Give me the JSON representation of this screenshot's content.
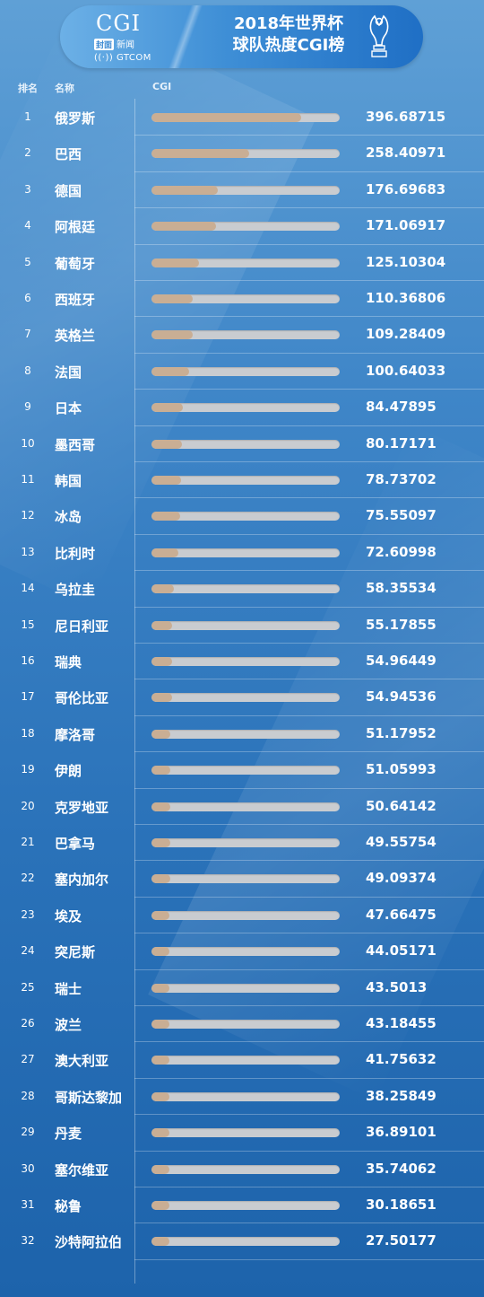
{
  "header": {
    "logo_text": "CGI",
    "logo_sub_box": "封面",
    "logo_sub_text": "新闻",
    "logo_gt": "GTCOM",
    "title_line1": "2018年世界杯",
    "title_line2": "球队热度CGI榜"
  },
  "colors": {
    "bar_fill": "#c9ae94",
    "bar_track": "#c9ccd0",
    "background_top": "#5fa0d6",
    "background_bottom": "#1d63ab"
  },
  "chart_data": {
    "type": "bar",
    "orientation": "horizontal",
    "columns": {
      "rank": "排名",
      "name": "名称",
      "value": "CGI"
    },
    "xlim": [
      0,
      500
    ],
    "rows": [
      {
        "rank": "1",
        "name": "俄罗斯",
        "value": "396.68715"
      },
      {
        "rank": "2",
        "name": "巴西",
        "value": "258.40971"
      },
      {
        "rank": "3",
        "name": "德国",
        "value": "176.69683"
      },
      {
        "rank": "4",
        "name": "阿根廷",
        "value": "171.06917"
      },
      {
        "rank": "5",
        "name": "葡萄牙",
        "value": "125.10304"
      },
      {
        "rank": "6",
        "name": "西班牙",
        "value": "110.36806"
      },
      {
        "rank": "7",
        "name": "英格兰",
        "value": "109.28409"
      },
      {
        "rank": "8",
        "name": "法国",
        "value": "100.64033"
      },
      {
        "rank": "9",
        "name": "日本",
        "value": "84.47895"
      },
      {
        "rank": "10",
        "name": "墨西哥",
        "value": "80.17171"
      },
      {
        "rank": "11",
        "name": "韩国",
        "value": "78.73702"
      },
      {
        "rank": "12",
        "name": "冰岛",
        "value": "75.55097"
      },
      {
        "rank": "13",
        "name": "比利时",
        "value": "72.60998"
      },
      {
        "rank": "14",
        "name": "乌拉圭",
        "value": "58.35534"
      },
      {
        "rank": "15",
        "name": "尼日利亚",
        "value": "55.17855"
      },
      {
        "rank": "16",
        "name": "瑞典",
        "value": "54.96449"
      },
      {
        "rank": "17",
        "name": "哥伦比亚",
        "value": "54.94536"
      },
      {
        "rank": "18",
        "name": "摩洛哥",
        "value": "51.17952"
      },
      {
        "rank": "19",
        "name": "伊朗",
        "value": "51.05993"
      },
      {
        "rank": "20",
        "name": "克罗地亚",
        "value": "50.64142"
      },
      {
        "rank": "21",
        "name": "巴拿马",
        "value": "49.55754"
      },
      {
        "rank": "22",
        "name": "塞内加尔",
        "value": "49.09374"
      },
      {
        "rank": "23",
        "name": "埃及",
        "value": "47.66475"
      },
      {
        "rank": "24",
        "name": "突尼斯",
        "value": "44.05171"
      },
      {
        "rank": "25",
        "name": "瑞士",
        "value": "43.5013"
      },
      {
        "rank": "26",
        "name": "波兰",
        "value": "43.18455"
      },
      {
        "rank": "27",
        "name": "澳大利亚",
        "value": "41.75632"
      },
      {
        "rank": "28",
        "name": "哥斯达黎加",
        "value": "38.25849"
      },
      {
        "rank": "29",
        "name": "丹麦",
        "value": "36.89101"
      },
      {
        "rank": "30",
        "name": "塞尔维亚",
        "value": "35.74062"
      },
      {
        "rank": "31",
        "name": "秘鲁",
        "value": "30.18651"
      },
      {
        "rank": "32",
        "name": "沙特阿拉伯",
        "value": "27.50177"
      }
    ]
  }
}
